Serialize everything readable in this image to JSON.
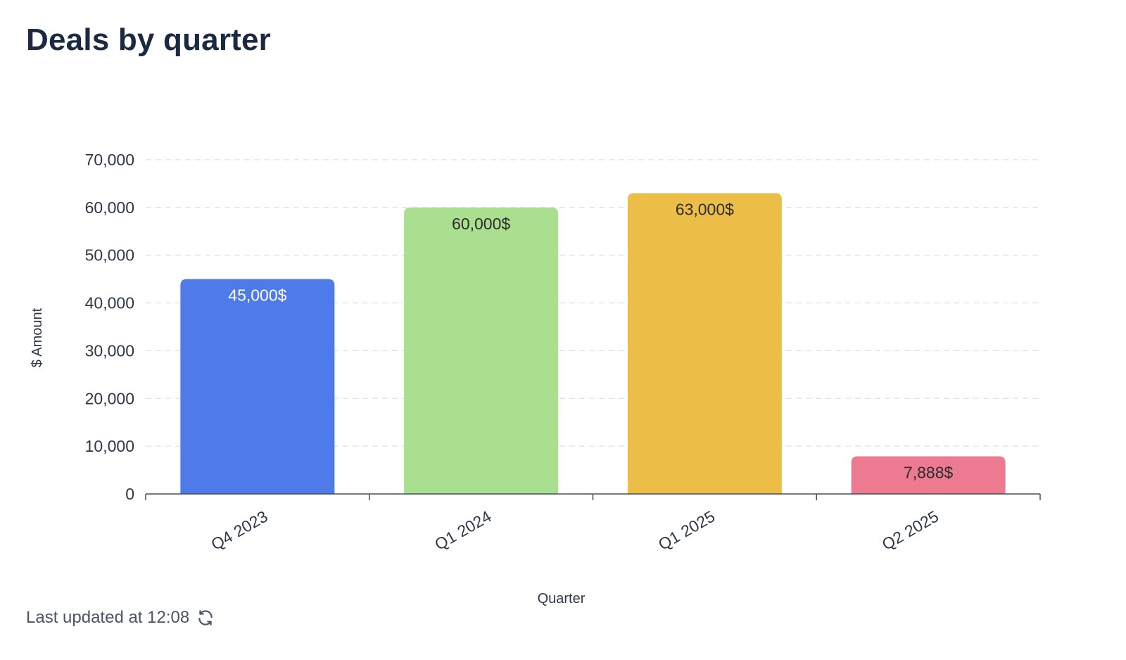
{
  "header": {
    "title": "Deals by quarter"
  },
  "footer": {
    "last_updated": "Last updated at 12:08",
    "refresh_icon": "refresh-icon"
  },
  "chart_data": {
    "type": "bar",
    "categories": [
      "Q4 2023",
      "Q1 2024",
      "Q1 2025",
      "Q2 2025"
    ],
    "values": [
      45000,
      60000,
      63000,
      7888
    ],
    "data_labels": [
      "45,000$",
      "60,000$",
      "63,000$",
      "7,888$"
    ],
    "colors": [
      "#4f7bea",
      "#abdf90",
      "#ecbd47",
      "#ec7a90"
    ],
    "label_colors": [
      "#ffffff",
      "#2d2d2d",
      "#2d2d2d",
      "#2d2d2d"
    ],
    "xlabel": "Quarter",
    "ylabel": "$ Amount",
    "ylim": [
      0,
      70000
    ],
    "yticks": [
      0,
      10000,
      20000,
      30000,
      40000,
      50000,
      60000,
      70000
    ],
    "ytick_labels": [
      "0",
      "10,000",
      "20,000",
      "30,000",
      "40,000",
      "50,000",
      "60,000",
      "70,000"
    ],
    "grid": true
  }
}
